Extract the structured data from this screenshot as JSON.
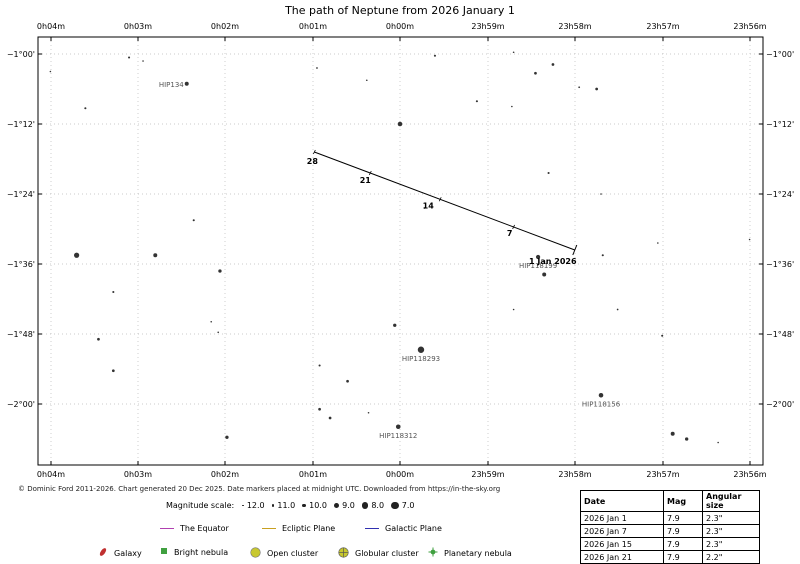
{
  "chart_data": {
    "type": "scatter",
    "title": "The path of Neptune from 2026 January 1",
    "x_axis": {
      "ticks": [
        "0h04m",
        "0h03m",
        "0h02m",
        "0h01m",
        "0h00m",
        "23h59m",
        "23h58m",
        "23h57m",
        "23h56m"
      ]
    },
    "y_axis": {
      "ticks": [
        "−1°00'",
        "−1°12'",
        "−1°24'",
        "−1°36'",
        "−1°48'",
        "−2°00'"
      ]
    },
    "grid": true,
    "units_note": "x in RA minutes from 0h00m (positive = east/left); y in Dec degrees",
    "path": [
      {
        "x": 0.98,
        "y": -1.28
      },
      {
        "x": -2.0,
        "y": -1.56
      }
    ],
    "path_markers": [
      {
        "label": "1 Jan 2026",
        "x": -2.0,
        "y": -1.56
      },
      {
        "label": "7",
        "x": -1.3,
        "y": -1.494
      },
      {
        "label": "14",
        "x": -0.46,
        "y": -1.415
      },
      {
        "label": "21",
        "x": 0.34,
        "y": -1.34
      },
      {
        "label": "28",
        "x": 0.98,
        "y": -1.28
      }
    ],
    "stars": [
      {
        "x": 3.1,
        "y": -1.01,
        "mag": 11.5
      },
      {
        "x": 0.95,
        "y": -1.04,
        "mag": 11.8
      },
      {
        "x": 2.94,
        "y": -1.02,
        "mag": 12.0
      },
      {
        "x": -0.4,
        "y": -1.005,
        "mag": 11.5
      },
      {
        "x": -1.3,
        "y": -0.995,
        "mag": 12.0
      },
      {
        "x": -1.55,
        "y": -1.055,
        "mag": 11.0
      },
      {
        "x": -1.75,
        "y": -1.03,
        "mag": 11.0
      },
      {
        "x": -2.05,
        "y": -1.095,
        "mag": 11.8
      },
      {
        "x": -2.25,
        "y": -1.1,
        "mag": 11.0
      },
      {
        "x": 2.44,
        "y": -1.085,
        "mag": 10.0,
        "name": "HIP134"
      },
      {
        "x": 0.0,
        "y": -1.2,
        "mag": 9.5
      },
      {
        "x": -2.3,
        "y": -1.4,
        "mag": 12.0
      },
      {
        "x": 3.6,
        "y": -1.155,
        "mag": 11.5
      },
      {
        "x": -0.88,
        "y": -1.135,
        "mag": 11.5
      },
      {
        "x": -1.28,
        "y": -1.15,
        "mag": 12.0
      },
      {
        "x": -2.95,
        "y": -1.54,
        "mag": 12.0
      },
      {
        "x": 2.36,
        "y": -1.475,
        "mag": 11.5
      },
      {
        "x": -0.28,
        "y": -1.44,
        "mag": 11.8
      },
      {
        "x": -1.7,
        "y": -1.34,
        "mag": 11.5
      },
      {
        "x": -2.49,
        "y": -1.73,
        "mag": 11.8
      },
      {
        "x": 0.38,
        "y": -1.075,
        "mag": 12.0
      },
      {
        "x": -1.65,
        "y": -1.63,
        "mag": 10.0
      },
      {
        "x": -1.3,
        "y": -1.73,
        "mag": 12.0
      },
      {
        "x": 3.7,
        "y": -1.575,
        "mag": 9.0
      },
      {
        "x": 2.8,
        "y": -1.575,
        "mag": 10.0
      },
      {
        "x": 2.06,
        "y": -1.62,
        "mag": 10.5
      },
      {
        "x": -1.58,
        "y": -1.58,
        "mag": 9.8,
        "name": "HIP118199"
      },
      {
        "x": -2.32,
        "y": -1.575,
        "mag": 11.5
      },
      {
        "x": 3.28,
        "y": -1.68,
        "mag": 11.5
      },
      {
        "x": 2.16,
        "y": -1.765,
        "mag": 12.0
      },
      {
        "x": 2.08,
        "y": -1.795,
        "mag": 12.0
      },
      {
        "x": 0.06,
        "y": -1.775,
        "mag": 10.5
      },
      {
        "x": 3.45,
        "y": -1.815,
        "mag": 11.0
      },
      {
        "x": -0.24,
        "y": -1.845,
        "mag": 8.0,
        "name": "HIP118293"
      },
      {
        "x": -3.0,
        "y": -1.805,
        "mag": 11.5
      },
      {
        "x": 3.28,
        "y": -1.905,
        "mag": 11.0
      },
      {
        "x": 0.92,
        "y": -1.89,
        "mag": 11.5
      },
      {
        "x": 0.6,
        "y": -1.935,
        "mag": 11.0
      },
      {
        "x": -2.3,
        "y": -1.975,
        "mag": 9.5,
        "name": "HIP118156"
      },
      {
        "x": 0.92,
        "y": -2.015,
        "mag": 11.0
      },
      {
        "x": 0.36,
        "y": -2.025,
        "mag": 12.0
      },
      {
        "x": 0.8,
        "y": -2.04,
        "mag": 11.0
      },
      {
        "x": 0.02,
        "y": -2.065,
        "mag": 9.5,
        "name": "HIP118312"
      },
      {
        "x": 1.98,
        "y": -2.095,
        "mag": 10.5
      },
      {
        "x": -3.12,
        "y": -2.085,
        "mag": 10.0
      },
      {
        "x": -3.28,
        "y": -2.1,
        "mag": 10.5
      },
      {
        "x": -3.64,
        "y": -2.11,
        "mag": 12.0
      },
      {
        "x": 4.0,
        "y": -1.05,
        "mag": 12.0
      },
      {
        "x": -4.0,
        "y": -1.53,
        "mag": 12.0
      }
    ]
  },
  "credit": "© Dominic Ford 2011-2026. Chart generated 20 Dec 2025. Date markers placed at midnight UTC. Downloaded from https://in-the-sky.org",
  "magnitude_scale": {
    "label": "Magnitude scale:",
    "items": [
      {
        "label": "12.0",
        "mag": 12.0
      },
      {
        "label": "11.0",
        "mag": 11.0
      },
      {
        "label": "10.0",
        "mag": 10.0
      },
      {
        "label": "9.0",
        "mag": 9.0
      },
      {
        "label": "8.0",
        "mag": 8.0
      },
      {
        "label": "7.0",
        "mag": 7.0
      }
    ]
  },
  "legend_lines": [
    {
      "label": "The Equator",
      "color": "#b040b0"
    },
    {
      "label": "Ecliptic Plane",
      "color": "#c8a020"
    },
    {
      "label": "Galactic Plane",
      "color": "#3030b0"
    }
  ],
  "legend_objects": [
    {
      "label": "Galaxy",
      "icon": "galaxy-icon",
      "color": "#c03030"
    },
    {
      "label": "Bright nebula",
      "icon": "bright-nebula-icon",
      "color": "#40a040"
    },
    {
      "label": "Open cluster",
      "icon": "open-cluster-icon",
      "color": "#c8c830"
    },
    {
      "label": "Globular cluster",
      "icon": "globular-cluster-icon",
      "color": "#c8c830"
    },
    {
      "label": "Planetary nebula",
      "icon": "planetary-nebula-icon",
      "color": "#40a040"
    }
  ],
  "ephemeris": {
    "headers": [
      "Date",
      "Mag",
      "Angular size"
    ],
    "rows": [
      [
        "2026 Jan 1",
        "7.9",
        "2.3\""
      ],
      [
        "2026 Jan 7",
        "7.9",
        "2.3\""
      ],
      [
        "2026 Jan 15",
        "7.9",
        "2.3\""
      ],
      [
        "2026 Jan 21",
        "7.9",
        "2.2\""
      ]
    ]
  }
}
